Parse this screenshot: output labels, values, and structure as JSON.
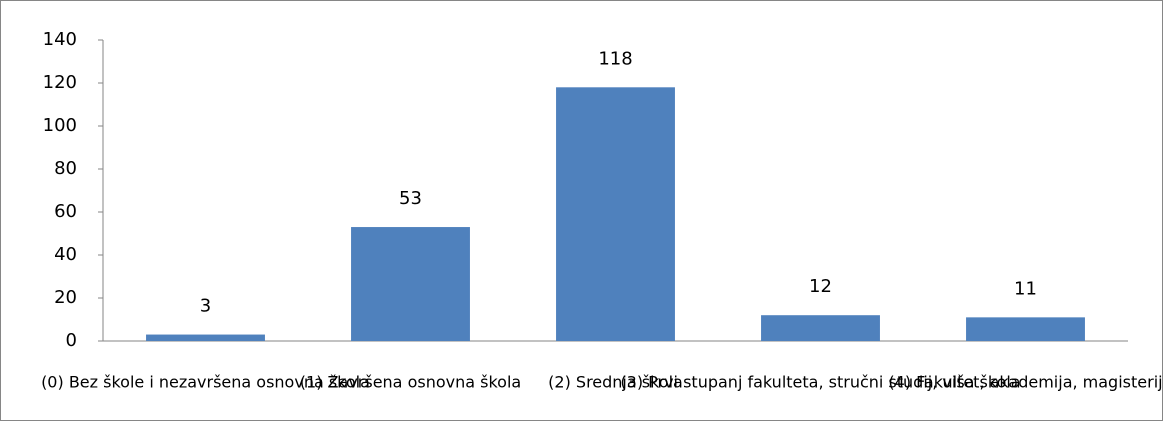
{
  "chart_data": {
    "type": "bar",
    "categories": [
      "(0) Bez škole i nezavršena osnovna škola",
      "(1) Završena osnovna škola",
      "(2) Srednja škola",
      "(3) Prvi stupanj fakulteta, stručni studij, viša škola",
      "(4) Fakultet, akademija, magisterij"
    ],
    "values": [
      3,
      53,
      118,
      12,
      11
    ],
    "color": "#4f81bd",
    "ylim": [
      0,
      140
    ],
    "yticks": [
      0,
      20,
      40,
      60,
      80,
      100,
      120,
      140
    ],
    "grid": false
  }
}
